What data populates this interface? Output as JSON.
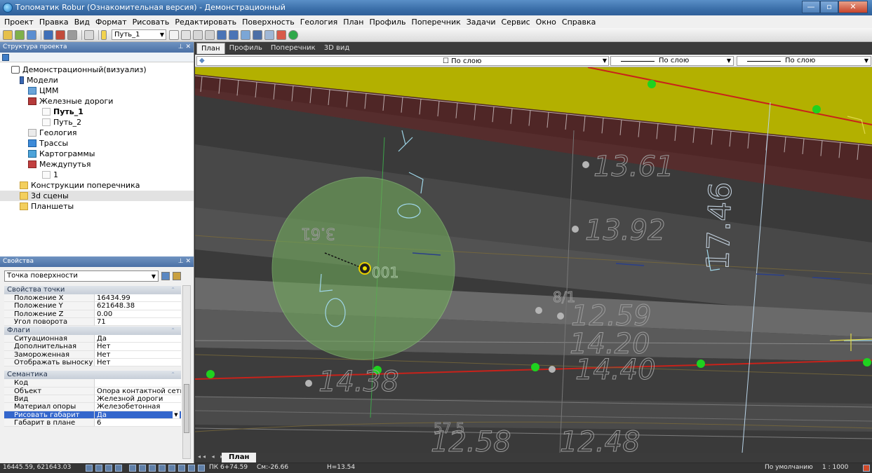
{
  "window": {
    "title": "Топоматик Robur (Ознакомительная версия) - Демонстрационный",
    "min_label": "—",
    "max_label": "▫",
    "close_label": "✕"
  },
  "menu": [
    "Проект",
    "Правка",
    "Вид",
    "Формат",
    "Рисовать",
    "Редактировать",
    "Поверхность",
    "Геология",
    "План",
    "Профиль",
    "Поперечник",
    "Задачи",
    "Сервис",
    "Окно",
    "Справка"
  ],
  "toolbar": {
    "track_select": "Путь_1"
  },
  "structure": {
    "title": "Структура проекта",
    "pin": "⊥ ✕",
    "items": [
      {
        "label": "Демонстрационный(визуализ)"
      },
      {
        "label": "Модели"
      },
      {
        "label": "ЦММ"
      },
      {
        "label": "Железные дороги"
      },
      {
        "label": "Путь_1"
      },
      {
        "label": "Путь_2"
      },
      {
        "label": "Геология"
      },
      {
        "label": "Трассы"
      },
      {
        "label": "Картограммы"
      },
      {
        "label": "Междупутья"
      },
      {
        "label": "1"
      },
      {
        "label": "Конструкции поперечника"
      },
      {
        "label": "3d сцены"
      },
      {
        "label": "Планшеты"
      }
    ]
  },
  "properties": {
    "title": "Свойства",
    "pin": "⊥ ✕",
    "object_type": "Точка поверхности",
    "categories": [
      {
        "name": "Свойства точки",
        "rows": [
          {
            "name": "Положение X",
            "value": "16434.99"
          },
          {
            "name": "Положение Y",
            "value": "621648.38"
          },
          {
            "name": "Положение Z",
            "value": "0.00"
          },
          {
            "name": "Угол поворота",
            "value": "71"
          }
        ]
      },
      {
        "name": "Флаги",
        "rows": [
          {
            "name": "Ситуационная",
            "value": "Да"
          },
          {
            "name": "Дополнительная",
            "value": "Нет"
          },
          {
            "name": "Замороженная",
            "value": "Нет"
          },
          {
            "name": "Отображать выноску",
            "value": "Нет"
          }
        ]
      },
      {
        "name": "Семантика",
        "rows": [
          {
            "name": "Код",
            "value": ""
          },
          {
            "name": "Объект",
            "value": "Опора контактной сети..."
          },
          {
            "name": "Вид",
            "value": "Железной дороги"
          },
          {
            "name": "Материал опоры",
            "value": "Железобетонная"
          },
          {
            "name": "Рисовать габарит",
            "value": "Да"
          },
          {
            "name": "Габарит в плане",
            "value": "6"
          }
        ]
      }
    ]
  },
  "doc_tabs": [
    "План",
    "Профиль",
    "Поперечник",
    "3D вид"
  ],
  "layerbar": {
    "checkbox_label": "☐ По слою",
    "line_label_1": "По слою",
    "line_label_2": "По слою"
  },
  "canvas": {
    "labels": [
      "13.61",
      "13.92",
      "12.59",
      "14.20",
      "14.40",
      "14.38",
      "12.58",
      "12.48",
      "17.46",
      "3.61",
      "001",
      "8/1",
      "57.5"
    ]
  },
  "sheet_tab": "План",
  "status": {
    "coords": "16445.59, 621643.03",
    "pk": "ПК 6+74.59",
    "sm": "См:-26.66",
    "h": "Н=13.54",
    "style": "По умолчанию",
    "scale": "1 : 1000"
  },
  "colors": {
    "embankment": "#b3b000",
    "red_line": "#c8221a",
    "green_point": "#1fd21f",
    "gabarit_circle": "#6fa85a"
  }
}
